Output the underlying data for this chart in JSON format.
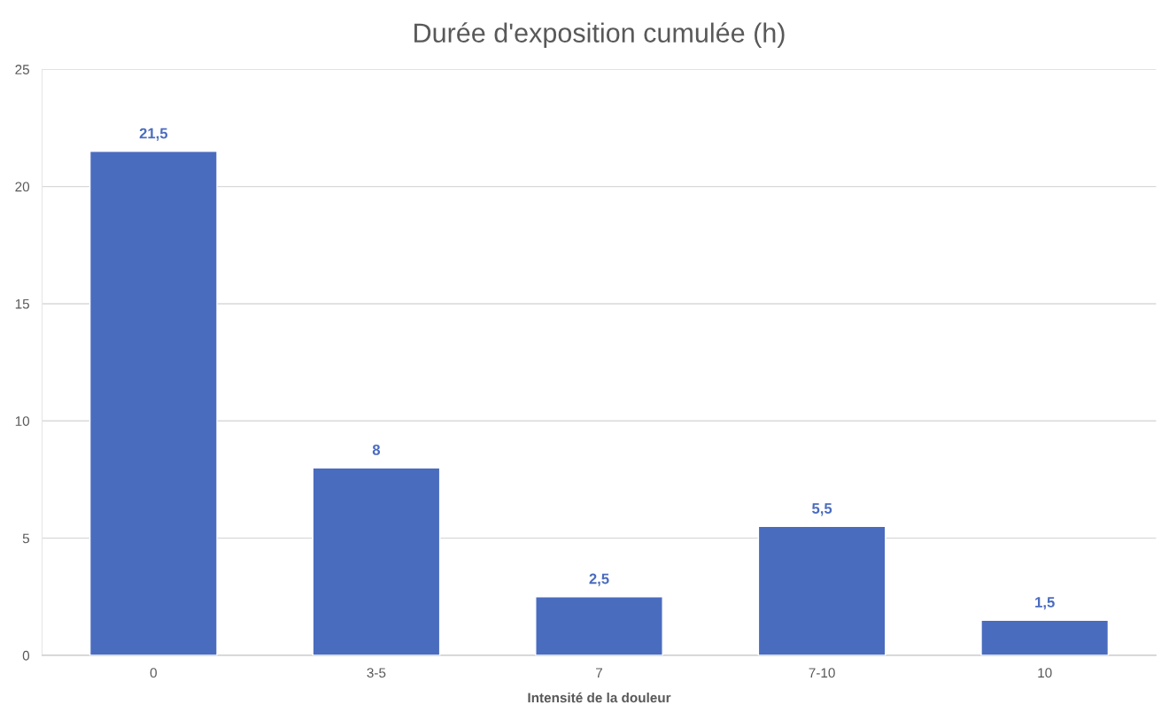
{
  "chart_data": {
    "type": "bar",
    "title": "Durée d'exposition cumulée (h)",
    "xlabel": "Intensité de la douleur",
    "categories": [
      "0",
      "3-5",
      "7",
      "7-10",
      "10"
    ],
    "values": [
      21.5,
      8,
      2.5,
      5.5,
      1.5
    ],
    "value_labels": [
      "21,5",
      "8",
      "2,5",
      "5,5",
      "1,5"
    ],
    "color": "#4a6cbf",
    "ylim": [
      0,
      25
    ],
    "yticks": [
      0,
      5,
      10,
      15,
      20,
      25
    ],
    "grid": "y",
    "legend": false
  }
}
